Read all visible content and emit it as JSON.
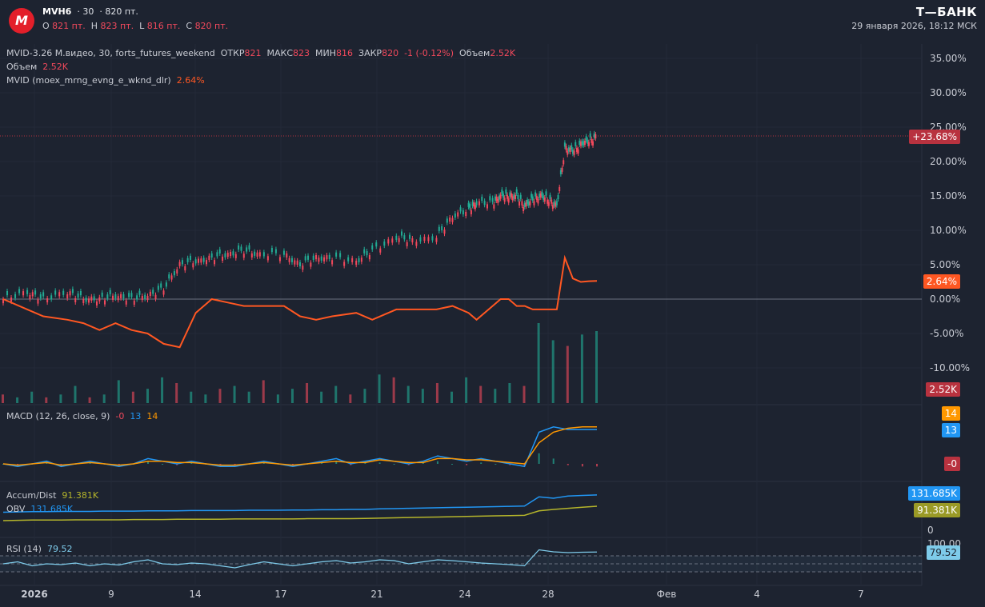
{
  "header": {
    "symbol": "MVH6",
    "interval": "30",
    "price": "820 пт.",
    "ohlc": {
      "o_label": "O",
      "o": "821 пт.",
      "h_label": "H",
      "h": "823 пт.",
      "l_label": "L",
      "l": "816 пт.",
      "c_label": "C",
      "c": "820 пт."
    },
    "brand": "Т—БАНК",
    "datetime": "29 января 2026, 18:12 МСК"
  },
  "legend": {
    "main_title": "MVID-3.26 М.видео, 30, forts_futures_weekend",
    "open_label": "ОТКР",
    "open_val": "821",
    "high_label": "МАКС",
    "high_val": "823",
    "low_label": "МИН",
    "low_val": "816",
    "close_label": "ЗАКР",
    "close_val": "820",
    "change": "-1 (-0.12%)",
    "volume_label": "Объем",
    "volume_val": "2.52K",
    "volume2_label": "Объем",
    "volume2_val": "2.52K",
    "compare_label": "MVID (moex_mrng_evng_e_wknd_dlr)",
    "compare_val": "2.64%",
    "macd_label": "MACD (12, 26, close, 9)",
    "macd_hist": "-0",
    "macd_line": "13",
    "macd_signal": "14",
    "ad_label": "Accum/Dist",
    "ad_val": "91.381K",
    "obv_label": "OBV",
    "obv_val": "131.685K",
    "rsi_label": "RSI (14)",
    "rsi_val": "79.52"
  },
  "price_labels": {
    "main": "+23.68%",
    "compare": "2.64%",
    "volume": "2.52K",
    "macd_signal": "14",
    "macd_line": "13",
    "macd_hist": "-0",
    "obv": "131.685K",
    "ad": "91.381K",
    "zero": "0",
    "rsi_top": "100.00",
    "rsi": "79.52"
  },
  "colors": {
    "background": "#1d2330",
    "up": "#22ab94",
    "down": "#f2495c",
    "compare": "#ff5722",
    "macd": "#2196f3",
    "signal": "#ff9800",
    "obv": "#2196f3",
    "ad": "#b5b52b",
    "rsi": "#7ecbea"
  },
  "chart_data": [
    {
      "type": "line",
      "title": "MVID-3.26 М.видео, 30, forts_futures_weekend",
      "y_ticks": [
        "35.00%",
        "30.00%",
        "25.00%",
        "20.00%",
        "15.00%",
        "10.00%",
        "5.00%",
        "0.00%",
        "-5.00%",
        "-10.00%"
      ],
      "x_ticks": [
        "2026",
        "9",
        "14",
        "17",
        "21",
        "24",
        "28",
        "Фев",
        "4",
        "7"
      ],
      "series": [
        {
          "name": "MVID-3.26",
          "x": [
            0,
            3,
            5,
            8,
            10,
            12,
            14,
            16,
            18,
            20,
            22,
            24,
            26,
            28,
            30,
            32,
            35,
            37,
            39,
            41,
            44,
            46,
            49,
            51,
            54,
            56,
            58,
            59,
            61,
            62,
            63,
            64,
            65,
            66,
            67,
            68,
            69,
            70,
            71,
            72,
            73,
            74
          ],
          "y": [
            0,
            1,
            0,
            1,
            0,
            0,
            0.5,
            0,
            0.5,
            1.5,
            5,
            5.5,
            6,
            6.5,
            7,
            6.5,
            6.5,
            5,
            6,
            6,
            5.5,
            7,
            9,
            8.5,
            9,
            12,
            13,
            14,
            14,
            15,
            15,
            15,
            13.5,
            14.5,
            15,
            14.5,
            13.5,
            22,
            21.5,
            22.5,
            23,
            23.68
          ]
        },
        {
          "name": "MVID (moex_mrng_evng_e_wknd_dlr)",
          "x": [
            0,
            3,
            5,
            8,
            10,
            12,
            14,
            16,
            18,
            20,
            22,
            24,
            26,
            28,
            30,
            32,
            35,
            37,
            39,
            41,
            44,
            46,
            49,
            51,
            54,
            56,
            58,
            59,
            61,
            62,
            63,
            64,
            65,
            66,
            67,
            68,
            69,
            70,
            71,
            72,
            73,
            74
          ],
          "y": [
            0,
            -1.5,
            -2.5,
            -3,
            -3.5,
            -4.5,
            -3.5,
            -4.5,
            -5,
            -6.5,
            -7,
            -2,
            0,
            -0.5,
            -1,
            -1,
            -1,
            -2.5,
            -3,
            -2.5,
            -2,
            -3,
            -1.5,
            -1.5,
            -1.5,
            -1,
            -2,
            -3,
            -1,
            0,
            0,
            -1,
            -1,
            -1.5,
            -1.5,
            -1.5,
            -1.5,
            6,
            3,
            2.5,
            2.6,
            2.64
          ]
        }
      ]
    },
    {
      "type": "bar",
      "title": "Объем",
      "values_k": [
        0.3,
        0.2,
        0.4,
        0.2,
        0.3,
        0.6,
        0.2,
        0.3,
        0.8,
        0.4,
        0.5,
        0.9,
        0.7,
        0.4,
        0.3,
        0.5,
        0.6,
        0.4,
        0.8,
        0.3,
        0.5,
        0.7,
        0.4,
        0.6,
        0.3,
        0.5,
        1.0,
        0.9,
        0.6,
        0.5,
        0.7,
        0.4,
        0.9,
        0.6,
        0.5,
        0.7,
        0.6,
        2.8,
        2.2,
        2.0,
        2.4,
        2.52
      ]
    },
    {
      "type": "line",
      "title": "MACD (12, 26, close, 9)",
      "macd": [
        0,
        -1,
        0,
        1,
        -1,
        0,
        1,
        0,
        -1,
        0,
        2,
        1,
        0,
        1,
        0,
        -1,
        -1,
        0,
        1,
        0,
        -1,
        0,
        1,
        2,
        0,
        1,
        2,
        1,
        0,
        1,
        3,
        2,
        1,
        2,
        1,
        0,
        -1,
        12,
        14,
        13,
        13,
        13
      ],
      "signal": [
        0,
        -0.5,
        0,
        0.5,
        -0.5,
        0,
        0.5,
        0,
        -0.5,
        0,
        1,
        1,
        0.5,
        0.5,
        0,
        -0.5,
        -0.5,
        0,
        0.5,
        0,
        -0.5,
        0,
        0.5,
        1,
        0.5,
        0.5,
        1.5,
        1,
        0.5,
        0.5,
        2,
        2,
        1.5,
        1.5,
        1,
        0.5,
        0,
        8,
        12,
        13.5,
        14,
        14
      ]
    },
    {
      "type": "line",
      "title": "Accum/Dist · OBV",
      "obv_k": [
        70,
        71,
        72,
        72,
        73,
        73,
        73,
        74,
        74,
        74,
        75,
        75,
        75,
        76,
        76,
        76,
        76,
        77,
        77,
        77,
        78,
        78,
        79,
        79,
        80,
        80,
        82,
        83,
        84,
        85,
        86,
        87,
        88,
        89,
        90,
        91,
        92,
        125,
        120,
        128,
        130,
        131.685
      ],
      "ad_k": [
        40,
        41,
        42,
        42,
        42,
        43,
        43,
        43,
        43,
        44,
        44,
        44,
        45,
        45,
        45,
        45,
        46,
        46,
        46,
        46,
        46,
        47,
        47,
        47,
        47,
        48,
        49,
        50,
        51,
        52,
        53,
        54,
        55,
        56,
        57,
        58,
        59,
        75,
        80,
        84,
        88,
        91.381
      ]
    },
    {
      "type": "line",
      "title": "RSI (14)",
      "y_ticks": [
        "100.00"
      ],
      "values": [
        50,
        55,
        45,
        50,
        48,
        52,
        45,
        50,
        47,
        55,
        60,
        50,
        48,
        52,
        50,
        45,
        40,
        48,
        55,
        50,
        45,
        50,
        55,
        58,
        52,
        55,
        60,
        58,
        50,
        55,
        60,
        58,
        55,
        52,
        50,
        48,
        45,
        85,
        80,
        78,
        79,
        79.52
      ]
    }
  ]
}
